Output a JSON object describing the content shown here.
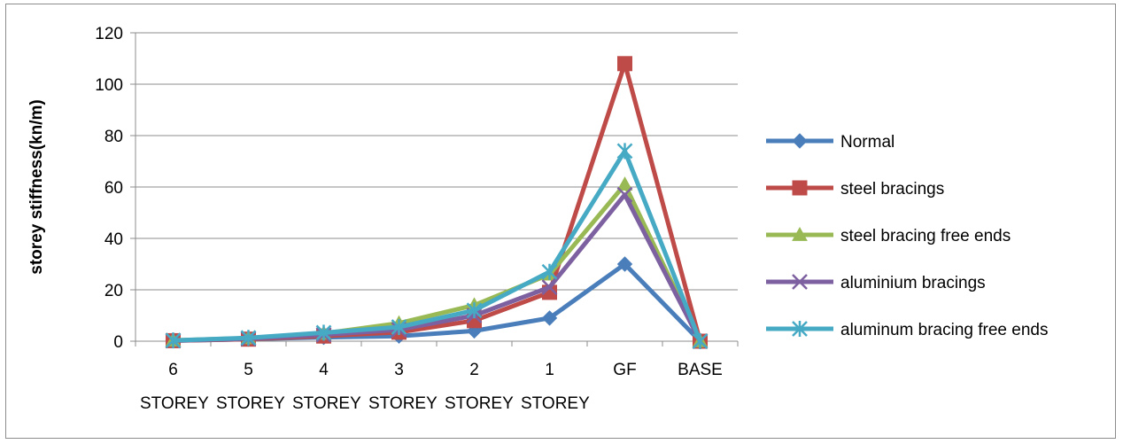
{
  "chart_data": {
    "type": "line",
    "title": "",
    "xlabel": "",
    "ylabel": "storey stiffness(kn/m)",
    "ylim": [
      0,
      120
    ],
    "yticks": [
      "0",
      "20",
      "40",
      "60",
      "80",
      "100",
      "120"
    ],
    "categories": [
      "6",
      "5",
      "4",
      "3",
      "2",
      "1",
      "GF",
      "BASE"
    ],
    "category_sublabel": "STOREY",
    "grid": "horizontal",
    "legend_position": "right",
    "series": [
      {
        "name": "Normal",
        "color": "#4a7ebb",
        "marker": "diamond",
        "values": [
          0.2,
          0.8,
          1.5,
          2.0,
          4.0,
          9.0,
          30.0,
          0
        ]
      },
      {
        "name": "steel bracings",
        "color": "#be4b48",
        "marker": "square",
        "values": [
          0.2,
          0.8,
          2.0,
          3.5,
          8.0,
          19.0,
          108.0,
          0
        ]
      },
      {
        "name": "steel bracing free ends",
        "color": "#98b954",
        "marker": "triangle",
        "values": [
          0.3,
          1.2,
          3.0,
          7.0,
          14.0,
          26.0,
          61.0,
          0
        ]
      },
      {
        "name": "aluminium bracings",
        "color": "#7d60a0",
        "marker": "x",
        "values": [
          0.2,
          1.0,
          2.5,
          4.5,
          10.0,
          21.0,
          57.0,
          0
        ]
      },
      {
        "name": "aluminum bracing free ends",
        "color": "#46aac5",
        "marker": "asterisk",
        "values": [
          0.3,
          1.3,
          3.3,
          5.5,
          12.0,
          27.0,
          74.0,
          0
        ]
      }
    ]
  }
}
